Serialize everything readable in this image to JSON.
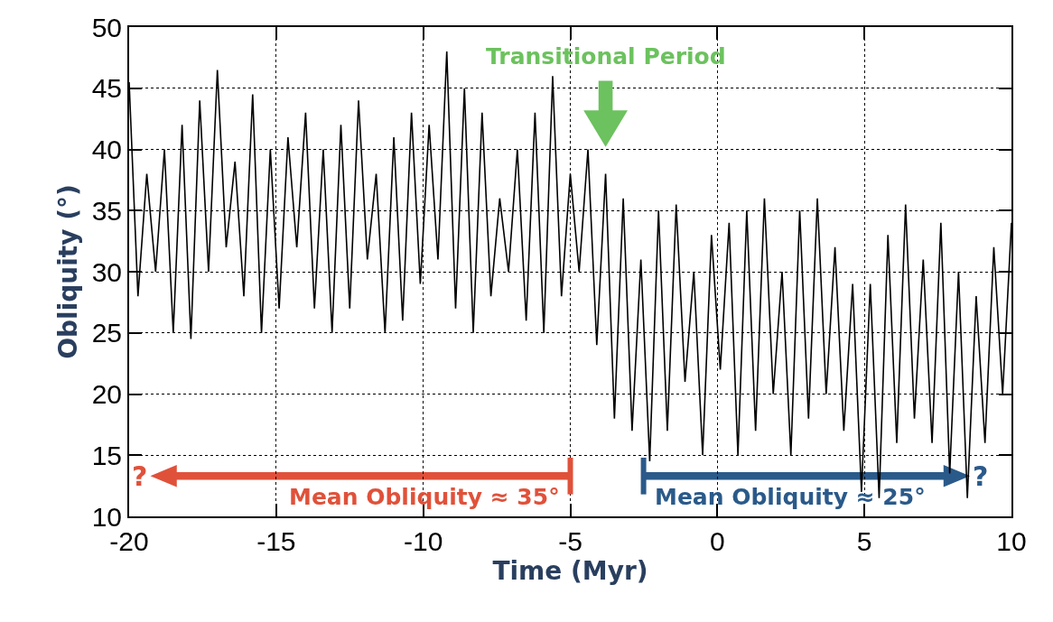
{
  "chart_data": {
    "type": "line",
    "xlabel": "Time (Myr)",
    "ylabel": "Obliquity (°)",
    "xlim": [
      -20,
      10
    ],
    "xticks": [
      -20,
      -15,
      -10,
      -5,
      0,
      5,
      10
    ],
    "ylim": [
      10,
      50
    ],
    "yticks": [
      10,
      15,
      20,
      25,
      30,
      35,
      40,
      45,
      50
    ],
    "grid": true,
    "marker": "none",
    "line_style": "solid",
    "x": [
      -20.0,
      -19.7,
      -19.4,
      -19.1,
      -18.8,
      -18.5,
      -18.2,
      -17.9,
      -17.6,
      -17.3,
      -17.0,
      -16.7,
      -16.4,
      -16.1,
      -15.8,
      -15.5,
      -15.2,
      -14.9,
      -14.6,
      -14.3,
      -14.0,
      -13.7,
      -13.4,
      -13.1,
      -12.8,
      -12.5,
      -12.2,
      -11.9,
      -11.6,
      -11.3,
      -11.0,
      -10.7,
      -10.4,
      -10.1,
      -9.8,
      -9.5,
      -9.2,
      -8.9,
      -8.6,
      -8.3,
      -8.0,
      -7.7,
      -7.4,
      -7.1,
      -6.8,
      -6.5,
      -6.2,
      -5.9,
      -5.6,
      -5.3,
      -5.0,
      -4.7,
      -4.4,
      -4.1,
      -3.8,
      -3.5,
      -3.2,
      -2.9,
      -2.6,
      -2.3,
      -2.0,
      -1.7,
      -1.4,
      -1.1,
      -0.8,
      -0.5,
      -0.2,
      0.1,
      0.4,
      0.7,
      1.0,
      1.3,
      1.6,
      1.9,
      2.2,
      2.5,
      2.8,
      3.1,
      3.4,
      3.7,
      4.0,
      4.3,
      4.6,
      4.9,
      5.2,
      5.5,
      5.8,
      6.1,
      6.4,
      6.7,
      7.0,
      7.3,
      7.6,
      7.9,
      8.2,
      8.5,
      8.8,
      9.1,
      9.4,
      9.7,
      10.0
    ],
    "series": [
      {
        "color": "#000000",
        "values": [
          45.5,
          28,
          38,
          30,
          40,
          25,
          42,
          24.5,
          44,
          30,
          46.5,
          32,
          39,
          28,
          44.5,
          25,
          40,
          27,
          41,
          32,
          43,
          27,
          40,
          25,
          42,
          27,
          44,
          31,
          38,
          25,
          41,
          26,
          43,
          29,
          42,
          31,
          48,
          27,
          45,
          25,
          43,
          28,
          36,
          30,
          40,
          26,
          43,
          25,
          46,
          28,
          38,
          30,
          40,
          24,
          38,
          18,
          36,
          17,
          31,
          14.5,
          35,
          17,
          35.5,
          21,
          30,
          15,
          33,
          22,
          34,
          15,
          35,
          17,
          36,
          20,
          30,
          15,
          35,
          18,
          36,
          20,
          32,
          17,
          29,
          12,
          29,
          11.5,
          33,
          16,
          35.5,
          18,
          31,
          16,
          34,
          13.5,
          30,
          11.5,
          28,
          16,
          32,
          20,
          34
        ]
      }
    ],
    "annotations": [
      "Transitional Period",
      "Mean Obliquity ≈ 35°",
      "?",
      "Mean Obliquity ≈ 25°",
      "?"
    ]
  }
}
